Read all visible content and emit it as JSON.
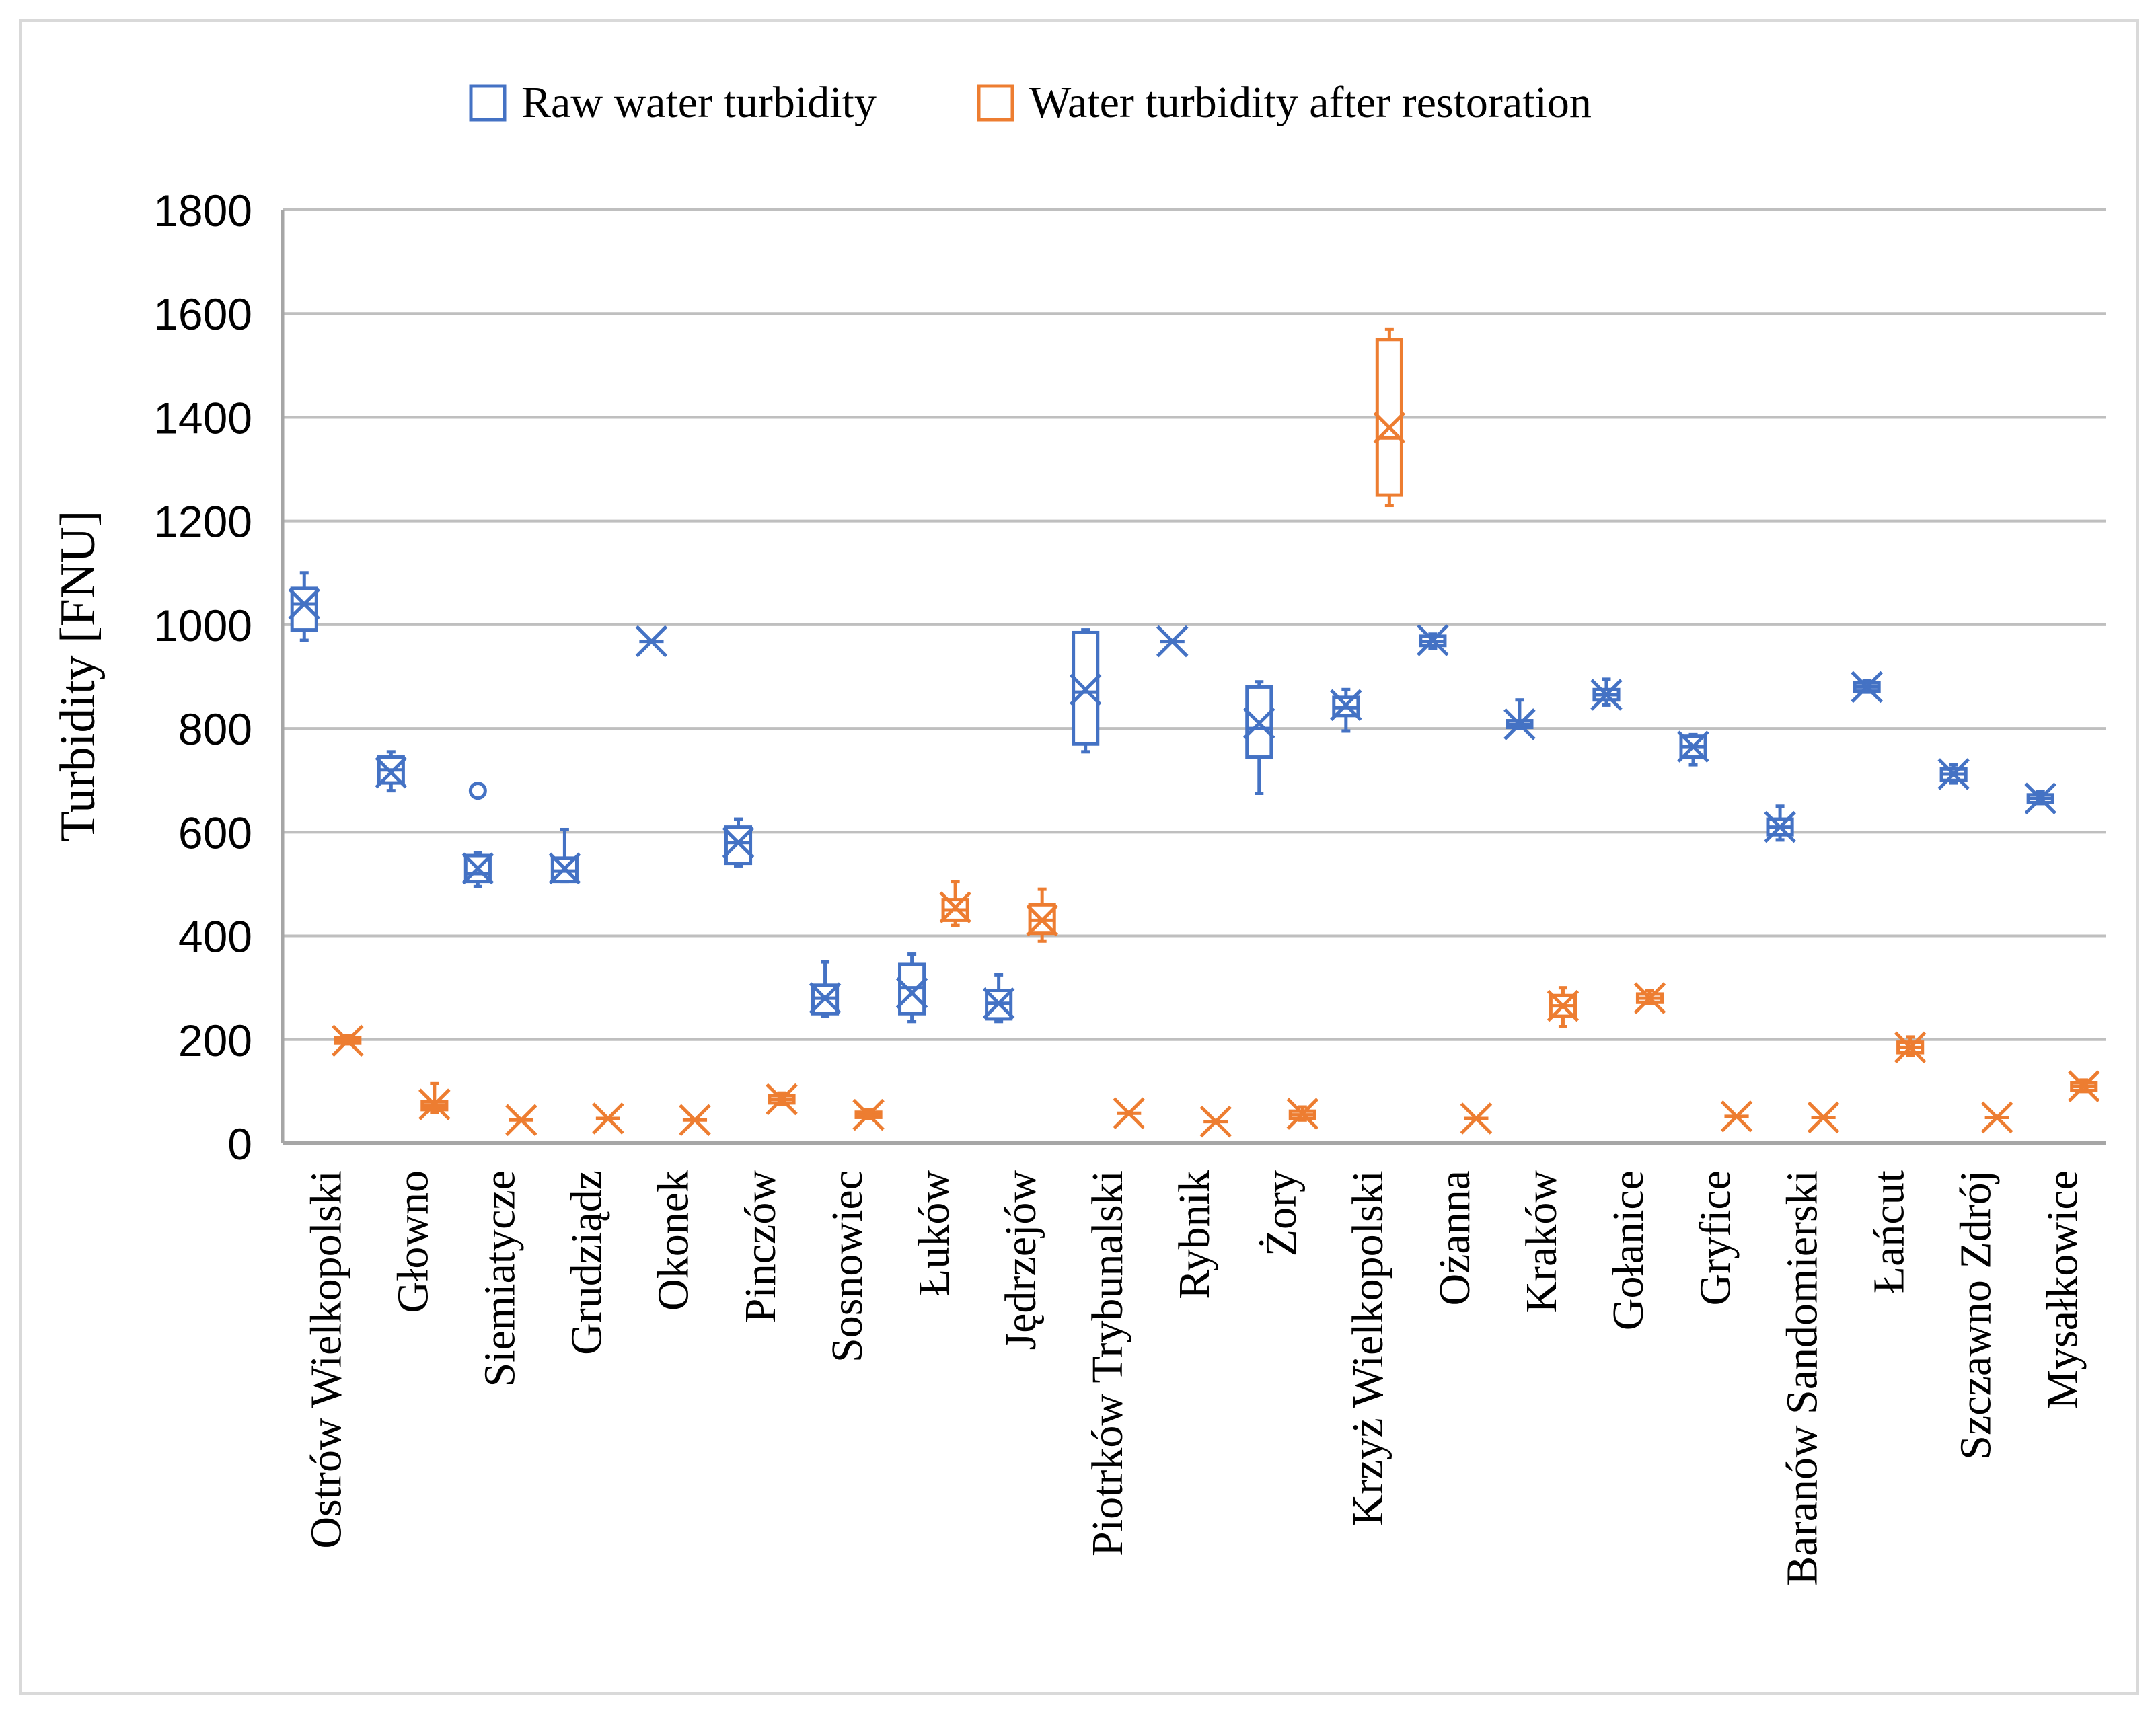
{
  "chart_data": {
    "type": "box",
    "title": "",
    "xlabel": "",
    "ylabel": "Turbidity [FNU]",
    "ylim": [
      0,
      1800
    ],
    "yticks": [
      0,
      200,
      400,
      600,
      800,
      1000,
      1200,
      1400,
      1600,
      1800
    ],
    "grid": true,
    "legend_position": "top-center",
    "colors": {
      "raw": "#4472C4",
      "after": "#ED7D31",
      "grid": "#BFBFBF",
      "axis": "#A6A6A6",
      "frame": "#D9D9D9",
      "text": "#000000"
    },
    "categories": [
      "Ostrów Wielkopolski",
      "Głowno",
      "Siemiatycze",
      "Grudziądz",
      "Okonek",
      "Pinczów",
      "Sosnowiec",
      "Łuków",
      "Jędrzejów",
      "Piotrków Trybunalski",
      "Rybnik",
      "Żory",
      "Krzyż Wielkopolski",
      "Ożanna",
      "Kraków",
      "Gołanice",
      "Gryfice",
      "Baranów Sandomierski",
      "Łańcut",
      "Szczawno Zdrój",
      "Mysałkowice"
    ],
    "series": [
      {
        "name": "Raw water turbidity",
        "color_key": "raw",
        "boxes": [
          {
            "min": 970,
            "q1": 990,
            "median": 1040,
            "q3": 1070,
            "max": 1100,
            "mean": 1040,
            "outliers": []
          },
          {
            "min": 680,
            "q1": 695,
            "median": 720,
            "q3": 745,
            "max": 755,
            "mean": 715,
            "outliers": []
          },
          {
            "min": 495,
            "q1": 505,
            "median": 520,
            "q3": 555,
            "max": 560,
            "mean": 530,
            "outliers": [
              680
            ]
          },
          {
            "min": 505,
            "q1": 505,
            "median": 525,
            "q3": 550,
            "max": 605,
            "mean": 530,
            "outliers": []
          },
          {
            "min": 968,
            "q1": 968,
            "median": 968,
            "q3": 968,
            "max": 968,
            "mean": 968,
            "outliers": []
          },
          {
            "min": 535,
            "q1": 540,
            "median": 580,
            "q3": 610,
            "max": 625,
            "mean": 580,
            "outliers": []
          },
          {
            "min": 245,
            "q1": 250,
            "median": 280,
            "q3": 305,
            "max": 350,
            "mean": 280,
            "outliers": []
          },
          {
            "min": 235,
            "q1": 250,
            "median": 300,
            "q3": 345,
            "max": 365,
            "mean": 290,
            "outliers": []
          },
          {
            "min": 235,
            "q1": 240,
            "median": 270,
            "q3": 295,
            "max": 325,
            "mean": 270,
            "outliers": []
          },
          {
            "min": 755,
            "q1": 770,
            "median": 870,
            "q3": 985,
            "max": 990,
            "mean": 875,
            "outliers": []
          },
          {
            "min": 968,
            "q1": 968,
            "median": 968,
            "q3": 968,
            "max": 968,
            "mean": 968,
            "outliers": []
          },
          {
            "min": 675,
            "q1": 745,
            "median": 800,
            "q3": 880,
            "max": 890,
            "mean": 810,
            "outliers": []
          },
          {
            "min": 795,
            "q1": 825,
            "median": 840,
            "q3": 860,
            "max": 875,
            "mean": 845,
            "outliers": []
          },
          {
            "min": 955,
            "q1": 960,
            "median": 968,
            "q3": 978,
            "max": 982,
            "mean": 970,
            "outliers": []
          },
          {
            "min": 800,
            "q1": 802,
            "median": 808,
            "q3": 815,
            "max": 855,
            "mean": 808,
            "outliers": []
          },
          {
            "min": 845,
            "q1": 855,
            "median": 865,
            "q3": 875,
            "max": 895,
            "mean": 865,
            "outliers": []
          },
          {
            "min": 730,
            "q1": 745,
            "median": 765,
            "q3": 785,
            "max": 788,
            "mean": 765,
            "outliers": []
          },
          {
            "min": 585,
            "q1": 595,
            "median": 610,
            "q3": 625,
            "max": 650,
            "mean": 610,
            "outliers": []
          },
          {
            "min": 870,
            "q1": 872,
            "median": 880,
            "q3": 888,
            "max": 892,
            "mean": 880,
            "outliers": []
          },
          {
            "min": 695,
            "q1": 700,
            "median": 712,
            "q3": 722,
            "max": 730,
            "mean": 712,
            "outliers": []
          },
          {
            "min": 655,
            "q1": 657,
            "median": 665,
            "q3": 672,
            "max": 678,
            "mean": 665,
            "outliers": []
          }
        ]
      },
      {
        "name": "Water turbidity after restoration",
        "color_key": "after",
        "boxes": [
          {
            "min": 192,
            "q1": 193,
            "median": 198,
            "q3": 204,
            "max": 207,
            "mean": 198,
            "outliers": []
          },
          {
            "min": 60,
            "q1": 65,
            "median": 72,
            "q3": 80,
            "max": 115,
            "mean": 75,
            "outliers": []
          },
          {
            "min": 45,
            "q1": 45,
            "median": 45,
            "q3": 45,
            "max": 45,
            "mean": 45,
            "outliers": []
          },
          {
            "min": 48,
            "q1": 48,
            "median": 48,
            "q3": 48,
            "max": 48,
            "mean": 48,
            "outliers": []
          },
          {
            "min": 45,
            "q1": 45,
            "median": 45,
            "q3": 45,
            "max": 45,
            "mean": 45,
            "outliers": []
          },
          {
            "min": 75,
            "q1": 78,
            "median": 85,
            "q3": 92,
            "max": 97,
            "mean": 85,
            "outliers": []
          },
          {
            "min": 48,
            "q1": 50,
            "median": 55,
            "q3": 60,
            "max": 65,
            "mean": 55,
            "outliers": []
          },
          {
            "min": 420,
            "q1": 430,
            "median": 450,
            "q3": 470,
            "max": 505,
            "mean": 455,
            "outliers": []
          },
          {
            "min": 390,
            "q1": 405,
            "median": 430,
            "q3": 460,
            "max": 490,
            "mean": 430,
            "outliers": []
          },
          {
            "min": 58,
            "q1": 58,
            "median": 58,
            "q3": 58,
            "max": 58,
            "mean": 58,
            "outliers": []
          },
          {
            "min": 42,
            "q1": 42,
            "median": 42,
            "q3": 42,
            "max": 42,
            "mean": 42,
            "outliers": []
          },
          {
            "min": 45,
            "q1": 48,
            "median": 55,
            "q3": 62,
            "max": 70,
            "mean": 57,
            "outliers": []
          },
          {
            "min": 1230,
            "q1": 1250,
            "median": 1360,
            "q3": 1550,
            "max": 1570,
            "mean": 1380,
            "outliers": []
          },
          {
            "min": 48,
            "q1": 48,
            "median": 48,
            "q3": 48,
            "max": 48,
            "mean": 48,
            "outliers": []
          },
          {
            "min": 225,
            "q1": 245,
            "median": 265,
            "q3": 285,
            "max": 300,
            "mean": 265,
            "outliers": []
          },
          {
            "min": 270,
            "q1": 272,
            "median": 280,
            "q3": 288,
            "max": 295,
            "mean": 280,
            "outliers": []
          },
          {
            "min": 52,
            "q1": 52,
            "median": 52,
            "q3": 52,
            "max": 52,
            "mean": 52,
            "outliers": []
          },
          {
            "min": 50,
            "q1": 50,
            "median": 50,
            "q3": 50,
            "max": 50,
            "mean": 50,
            "outliers": []
          },
          {
            "min": 170,
            "q1": 175,
            "median": 185,
            "q3": 195,
            "max": 205,
            "mean": 185,
            "outliers": []
          },
          {
            "min": 50,
            "q1": 50,
            "median": 50,
            "q3": 50,
            "max": 50,
            "mean": 50,
            "outliers": []
          },
          {
            "min": 100,
            "q1": 102,
            "median": 110,
            "q3": 117,
            "max": 122,
            "mean": 110,
            "outliers": []
          }
        ]
      }
    ]
  }
}
